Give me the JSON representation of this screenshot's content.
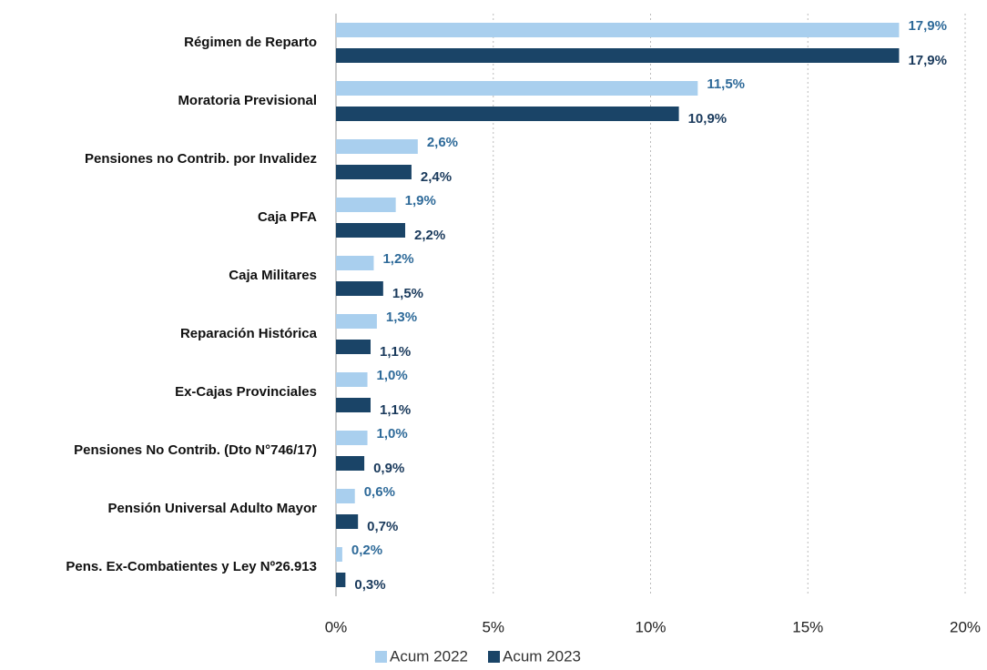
{
  "chart_data": {
    "type": "bar",
    "orientation": "horizontal",
    "categories": [
      "Régimen de Reparto",
      "Moratoria Previsional",
      "Pensiones no Contrib. por Invalidez",
      "Caja PFA",
      "Caja Militares",
      "Reparación Histórica",
      "Ex-Cajas Provinciales",
      "Pensiones No Contrib. (Dto N°746/17)",
      "Pensión Universal Adulto Mayor",
      "Pens. Ex-Combatientes y Ley Nº26.913"
    ],
    "series": [
      {
        "name": "Acum 2022",
        "color": "#a9cfee",
        "label_color": "#2e6a99",
        "values": [
          17.9,
          11.5,
          2.6,
          1.9,
          1.2,
          1.3,
          1.0,
          1.0,
          0.6,
          0.2
        ],
        "value_labels": [
          "17,9%",
          "11,5%",
          "2,6%",
          "1,9%",
          "1,2%",
          "1,3%",
          "1,0%",
          "1,0%",
          "0,6%",
          "0,2%"
        ]
      },
      {
        "name": "Acum 2023",
        "color": "#1a4467",
        "label_color": "#1a3a5c",
        "values": [
          17.9,
          10.9,
          2.4,
          2.2,
          1.5,
          1.1,
          1.1,
          0.9,
          0.7,
          0.3
        ],
        "value_labels": [
          "17,9%",
          "10,9%",
          "2,4%",
          "2,2%",
          "1,5%",
          "1,1%",
          "1,1%",
          "0,9%",
          "0,7%",
          "0,3%"
        ]
      }
    ],
    "xlim": [
      0,
      20
    ],
    "xticks": [
      {
        "value": 0,
        "label": "0%"
      },
      {
        "value": 5,
        "label": "5%"
      },
      {
        "value": 10,
        "label": "10%"
      },
      {
        "value": 15,
        "label": "15%"
      },
      {
        "value": 20,
        "label": "20%"
      }
    ],
    "grid": true,
    "legend": "bottom"
  }
}
